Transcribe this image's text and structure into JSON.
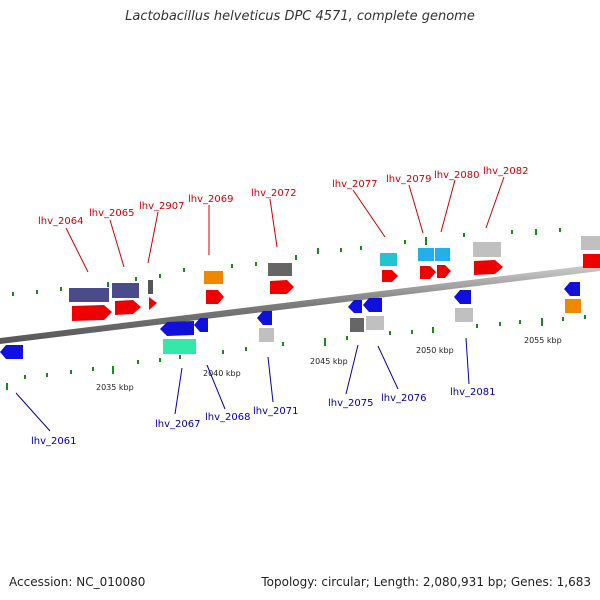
{
  "title": "Lactobacillus helveticus DPC 4571, complete genome",
  "footer": {
    "accession": "Accession: NC_010080",
    "summary": "Topology: circular; Length: 2,080,931 bp; Genes: 1,683"
  },
  "colors": {
    "label_top": "#cc0000",
    "label_bottom": "#0000aa",
    "backbone": "#8a8a8a",
    "tick": "#1a8a1a"
  },
  "scale_ticks": [
    {
      "label": "2035 kbp"
    },
    {
      "label": "2040 kbp"
    },
    {
      "label": "2045 kbp"
    },
    {
      "label": "2050 kbp"
    },
    {
      "label": "2055 kbp"
    }
  ],
  "gene_labels": {
    "top": [
      "lhv_2064",
      "lhv_2065",
      "lhv_2907",
      "lhv_2069",
      "lhv_2072",
      "lhv_2077",
      "lhv_2079",
      "lhv_2080",
      "lhv_2082"
    ],
    "bottom": [
      "lhv_2061",
      "lhv_2067",
      "lhv_2068",
      "lhv_2071",
      "lhv_2075",
      "lhv_2076",
      "lhv_2081"
    ]
  }
}
